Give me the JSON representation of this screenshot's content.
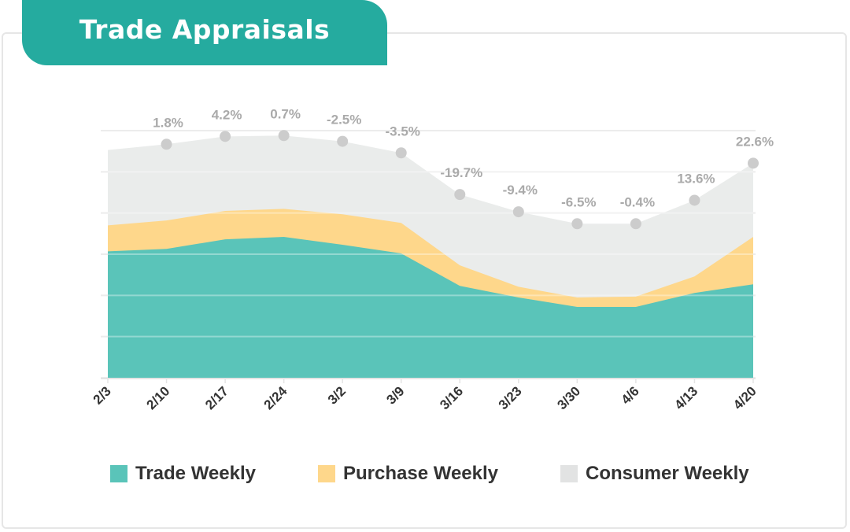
{
  "header": {
    "title": "Trade Appraisals"
  },
  "colors": {
    "banner": "#25ab9f",
    "trade": "#5ac4b9",
    "purchase": "#fed78b",
    "consumer": "#eaeceb",
    "marker": "#cccccc"
  },
  "chart_data": {
    "type": "area",
    "stacked": true,
    "categories": [
      "2/3",
      "2/10",
      "2/17",
      "2/24",
      "3/2",
      "3/9",
      "3/16",
      "3/23",
      "3/30",
      "4/6",
      "4/13",
      "4/20"
    ],
    "ylim": [
      0,
      6
    ],
    "grid": true,
    "legend_position": "bottom",
    "series": [
      {
        "name": "Trade Weekly",
        "color": "#5ac4b9",
        "values": [
          3.07,
          3.13,
          3.36,
          3.42,
          3.23,
          3.02,
          2.23,
          1.95,
          1.72,
          1.72,
          2.06,
          2.27
        ]
      },
      {
        "name": "Purchase Weekly",
        "color": "#fed78b",
        "values": [
          0.63,
          0.69,
          0.69,
          0.68,
          0.74,
          0.74,
          0.5,
          0.26,
          0.23,
          0.25,
          0.4,
          1.15
        ]
      },
      {
        "name": "Consumer Weekly",
        "color": "#eaeceb",
        "values": [
          1.83,
          1.85,
          1.81,
          1.78,
          1.77,
          1.7,
          1.72,
          1.82,
          1.79,
          1.77,
          1.85,
          1.79
        ]
      }
    ],
    "data_labels": [
      null,
      "1.8%",
      "4.2%",
      "0.7%",
      "-2.5%",
      "-3.5%",
      "-19.7%",
      "-9.4%",
      "-6.5%",
      "-0.4%",
      "13.6%",
      "22.6%"
    ]
  }
}
